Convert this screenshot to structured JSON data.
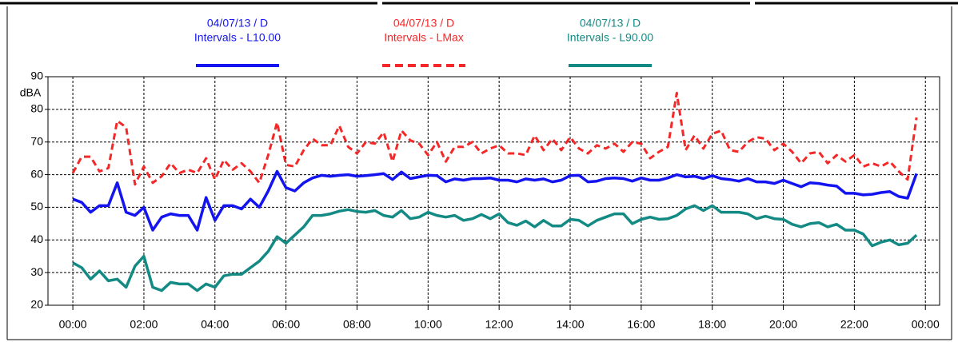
{
  "chart_data": {
    "type": "line",
    "ylabel": "dBA",
    "x": [
      0,
      0.25,
      0.5,
      0.75,
      1,
      1.25,
      1.5,
      1.75,
      2,
      2.25,
      2.5,
      2.75,
      3,
      3.25,
      3.5,
      3.75,
      4,
      4.25,
      4.5,
      4.75,
      5,
      5.25,
      5.5,
      5.75,
      6,
      6.25,
      6.5,
      6.75,
      7,
      7.25,
      7.5,
      7.75,
      8,
      8.25,
      8.5,
      8.75,
      9,
      9.25,
      9.5,
      9.75,
      10,
      10.25,
      10.5,
      10.75,
      11,
      11.25,
      11.5,
      11.75,
      12,
      12.25,
      12.5,
      12.75,
      13,
      13.25,
      13.5,
      13.75,
      14,
      14.25,
      14.5,
      14.75,
      15,
      15.25,
      15.5,
      15.75,
      16,
      16.25,
      16.5,
      16.75,
      17,
      17.25,
      17.5,
      17.75,
      18,
      18.25,
      18.5,
      18.75,
      19,
      19.25,
      19.5,
      19.75,
      20,
      20.25,
      20.5,
      20.75,
      21,
      21.25,
      21.5,
      21.75,
      22,
      22.25,
      22.5,
      22.75,
      23,
      23.25,
      23.5,
      23.75
    ],
    "series": [
      {
        "date": "04/07/13 / D",
        "name": "Intervals - L10.00",
        "color": "#1414f0",
        "dash": false,
        "values": [
          52.5,
          51.5,
          48.5,
          50.5,
          50.5,
          57.5,
          48.5,
          47.5,
          50,
          43,
          47,
          48,
          47.5,
          47.5,
          43,
          53,
          46,
          50.5,
          50.5,
          49.5,
          52.5,
          50,
          55,
          61,
          56,
          55,
          57.5,
          59,
          59.8,
          59.5,
          59.8,
          60,
          59.5,
          59.7,
          60,
          60.3,
          58.5,
          60.8,
          58.8,
          59.3,
          59.8,
          59.7,
          57.8,
          58.7,
          58.3,
          58.8,
          58.8,
          59,
          58.3,
          58.3,
          57.8,
          58.7,
          58.3,
          58.7,
          57.8,
          58.3,
          59.7,
          59.8,
          57.8,
          58,
          58.8,
          59,
          58.8,
          58,
          59,
          58.3,
          58.3,
          59,
          60,
          59.3,
          59.5,
          58.8,
          59.7,
          58.8,
          58.5,
          58,
          58.8,
          57.8,
          57.8,
          57.3,
          58.3,
          57.3,
          56.3,
          57.5,
          57.3,
          56.8,
          56.5,
          54.3,
          54.3,
          53.8,
          54,
          54.5,
          54.8,
          53.3,
          52.8,
          60.3
        ]
      },
      {
        "date": "04/07/13 / D",
        "name": "Intervals - LMax",
        "color": "#f42828",
        "dash": true,
        "values": [
          60.5,
          65.5,
          65.5,
          61,
          62,
          76.5,
          74.5,
          57,
          62.5,
          57.5,
          59.5,
          63.5,
          60.5,
          61.5,
          60.5,
          65,
          58.5,
          64.5,
          61.5,
          63.5,
          61,
          57.5,
          66,
          76,
          63,
          62.5,
          67.5,
          71,
          69,
          69,
          75,
          68.5,
          66.5,
          70,
          69.5,
          73,
          64,
          73.5,
          70.5,
          69.5,
          66,
          70,
          64,
          68.5,
          68.5,
          70,
          66.5,
          68,
          69,
          66.5,
          66.5,
          66,
          72,
          67.5,
          71,
          67.5,
          71.5,
          68,
          66.5,
          69,
          68,
          69.5,
          67,
          70,
          69.5,
          65,
          67,
          68.5,
          85,
          67.5,
          72,
          68,
          72.5,
          73.5,
          67.5,
          67,
          70,
          71.5,
          71,
          67.5,
          69.5,
          67,
          63.5,
          66.5,
          67,
          63.5,
          66,
          64,
          66,
          62.5,
          63.5,
          62.5,
          64,
          61,
          58.5,
          77.5
        ]
      },
      {
        "date": "04/07/13 / D",
        "name": "Intervals - L90.00",
        "color": "#138a84",
        "dash": false,
        "values": [
          33,
          31.5,
          28,
          30.5,
          27.5,
          28,
          25.5,
          32,
          35,
          25.5,
          24.5,
          27,
          26.5,
          26.5,
          24.5,
          26.5,
          25.5,
          29,
          29.5,
          29.5,
          31.5,
          33.5,
          36.5,
          41,
          39,
          41.5,
          44,
          47.5,
          47.5,
          48,
          48.8,
          49.3,
          48.7,
          48.5,
          49,
          47.5,
          47,
          49,
          46.5,
          47,
          48.5,
          47.5,
          47,
          47.5,
          46,
          46.5,
          47.8,
          46.5,
          48,
          45.3,
          44.5,
          45.8,
          44,
          46,
          44.3,
          44.3,
          46.3,
          46,
          44.3,
          46,
          47,
          48,
          48,
          45,
          46.3,
          47,
          46.3,
          46.5,
          47.5,
          49.5,
          50.5,
          49,
          50.5,
          48.5,
          48.5,
          48.5,
          48,
          46.5,
          47.3,
          46.5,
          46.3,
          44.8,
          44,
          45,
          45.3,
          44,
          44.8,
          43,
          43,
          41.8,
          38.2,
          39.3,
          40,
          38.5,
          39,
          41.5
        ]
      }
    ],
    "xlim": [
      -0.7,
      24.4
    ],
    "xticks": [
      {
        "value": 0,
        "label": "00:00"
      },
      {
        "value": 2,
        "label": "02:00"
      },
      {
        "value": 4,
        "label": "04:00"
      },
      {
        "value": 6,
        "label": "06:00"
      },
      {
        "value": 8,
        "label": "08:00"
      },
      {
        "value": 10,
        "label": "10:00"
      },
      {
        "value": 12,
        "label": "12:00"
      },
      {
        "value": 14,
        "label": "14:00"
      },
      {
        "value": 16,
        "label": "16:00"
      },
      {
        "value": 18,
        "label": "18:00"
      },
      {
        "value": 20,
        "label": "20:00"
      },
      {
        "value": 22,
        "label": "22:00"
      },
      {
        "value": 24,
        "label": "00:00"
      }
    ],
    "ylim": [
      20,
      90
    ],
    "yticks": [
      20,
      30,
      40,
      50,
      60,
      70,
      80,
      90
    ],
    "grid": true
  }
}
